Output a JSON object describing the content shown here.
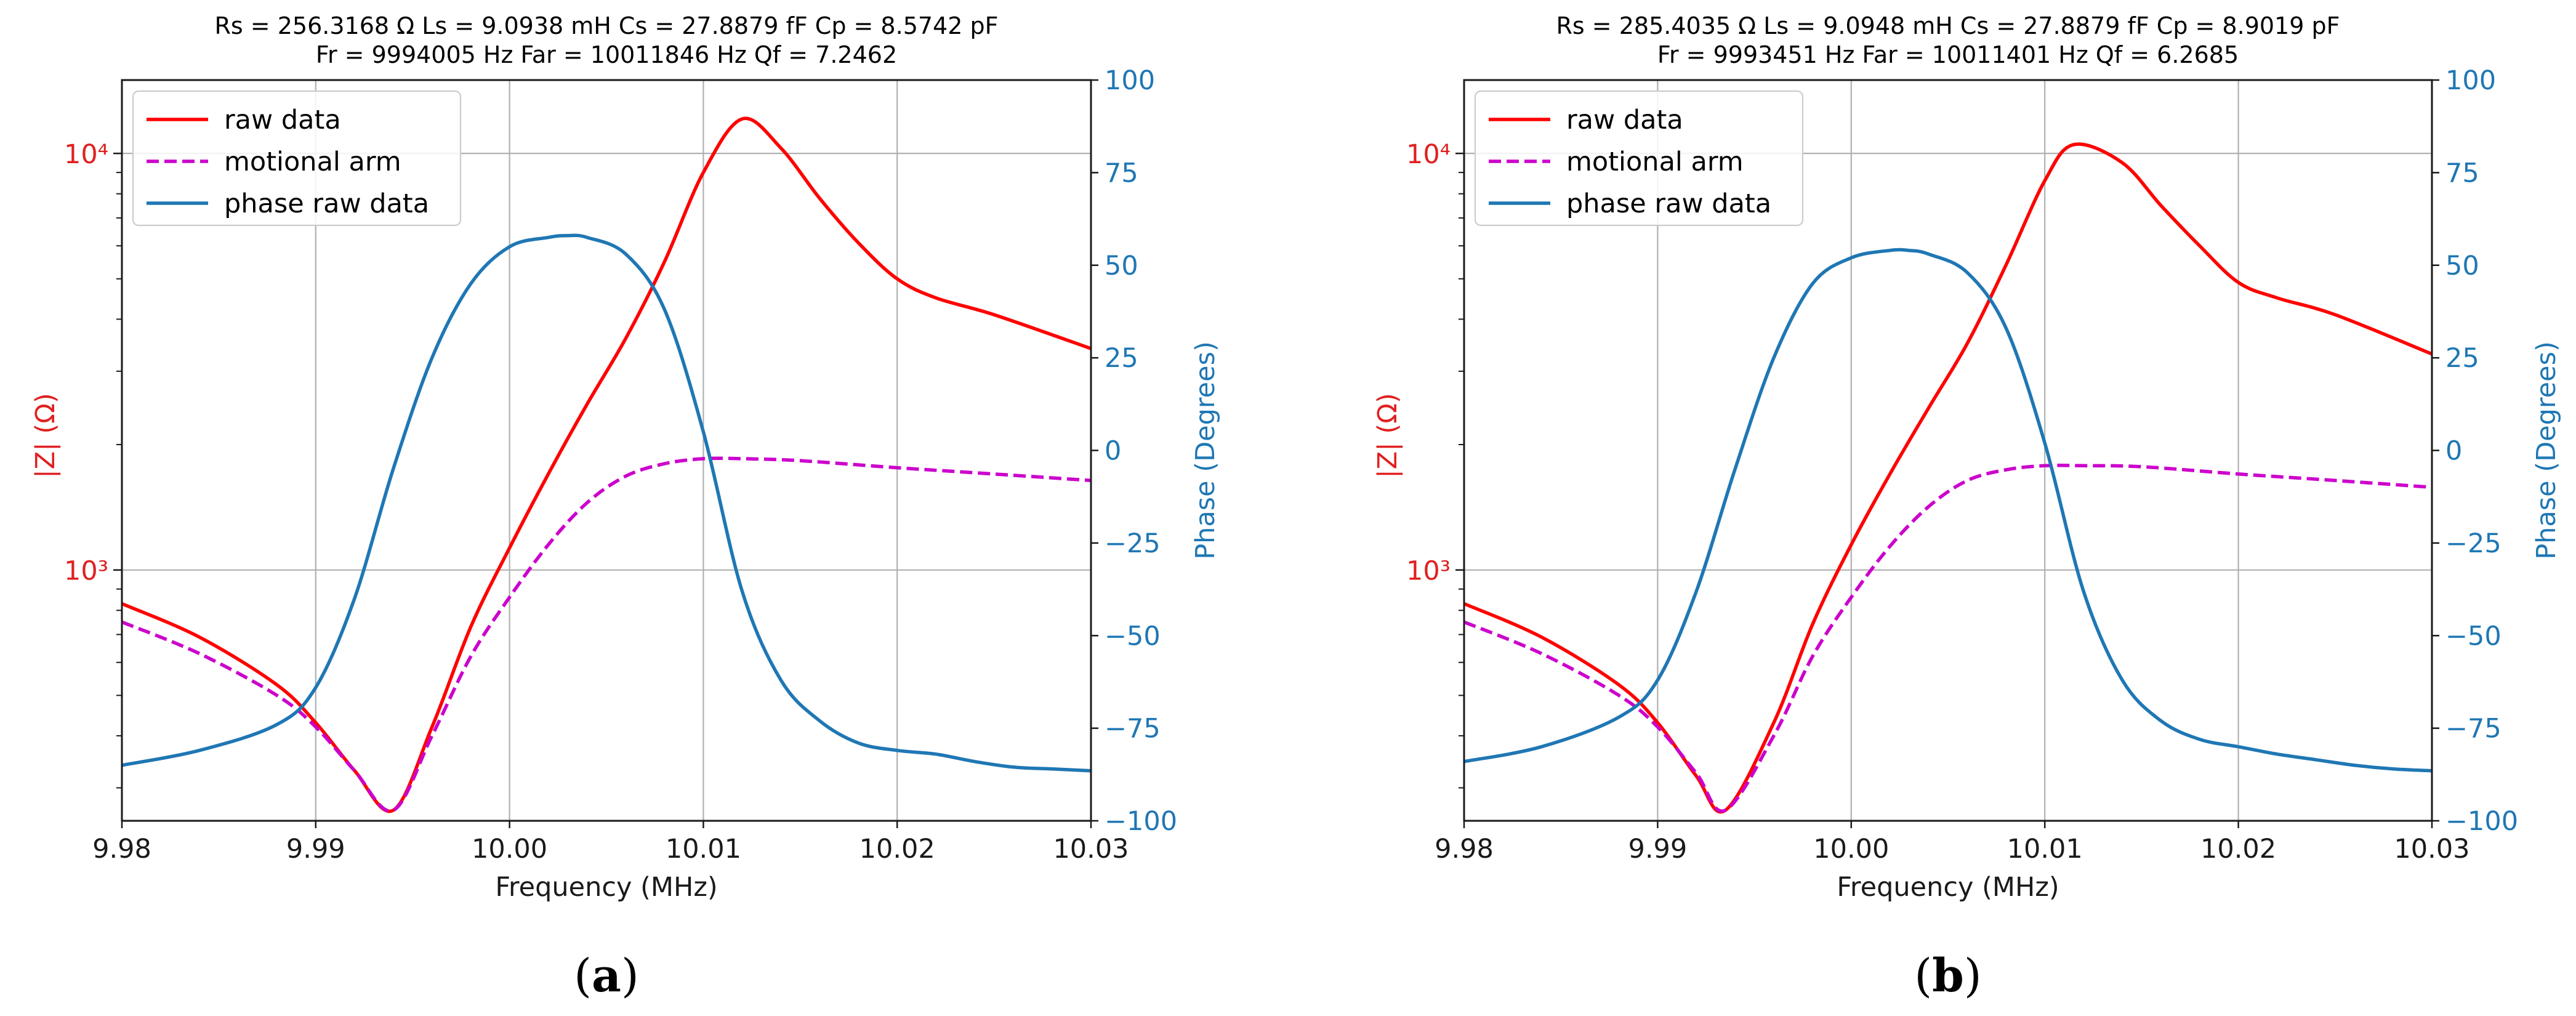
{
  "chart_data": [
    {
      "type": "line",
      "panel_label": "a",
      "title_lines": [
        "Rs = 256.3168 Ω    Ls = 9.0938 mH    Cs = 27.8879 fF    Cp = 8.5742 pF",
        "Fr = 9994005 Hz   Far = 10011846 Hz   Qf =    7.2462"
      ],
      "xlabel": "Frequency (MHz)",
      "ylabel_left": "|Z| (Ω)",
      "ylabel_right": "Phase (Degrees)",
      "xlim": [
        9.98,
        10.03
      ],
      "ylim_left_log": [
        250,
        15000
      ],
      "ylim_right": [
        -100,
        100
      ],
      "x_ticks": [
        9.98,
        9.99,
        10.0,
        10.01,
        10.02,
        10.03
      ],
      "x_tick_labels": [
        "9.98",
        "9.99",
        "10.00",
        "10.01",
        "10.02",
        "10.03"
      ],
      "y_left_ticks": [
        1000,
        10000
      ],
      "y_left_tick_labels": [
        "10³",
        "10⁴"
      ],
      "y_right_ticks": [
        -100,
        -75,
        -50,
        -25,
        0,
        25,
        50,
        75,
        100
      ],
      "y_right_tick_labels": [
        "−100",
        "−75",
        "−50",
        "−25",
        "0",
        "25",
        "50",
        "75",
        "100"
      ],
      "legend": [
        "raw data",
        "motional arm",
        "phase raw data"
      ],
      "series": [
        {
          "name": "raw data",
          "axis": "left",
          "color": "#ff0000",
          "dash": "solid",
          "x": [
            9.98,
            9.984,
            9.988,
            9.99,
            9.992,
            9.994,
            9.996,
            9.998,
            10.0,
            10.002,
            10.004,
            10.006,
            10.008,
            10.01,
            10.012,
            10.014,
            10.016,
            10.018,
            10.02,
            10.022,
            10.025,
            10.03
          ],
          "y": [
            830,
            690,
            530,
            430,
            330,
            265,
            420,
            730,
            1130,
            1700,
            2500,
            3600,
            5500,
            9000,
            12100,
            10300,
            7800,
            6100,
            5000,
            4500,
            4100,
            3400
          ]
        },
        {
          "name": "motional arm",
          "axis": "left",
          "color": "#cc00cc",
          "dash": "dashed",
          "x": [
            9.98,
            9.984,
            9.988,
            9.99,
            9.992,
            9.994,
            9.996,
            9.998,
            10.0,
            10.002,
            10.004,
            10.006,
            10.008,
            10.01,
            10.012,
            10.015,
            10.02,
            10.025,
            10.03
          ],
          "y": [
            750,
            630,
            500,
            420,
            330,
            265,
            400,
            620,
            860,
            1150,
            1450,
            1680,
            1800,
            1850,
            1850,
            1830,
            1760,
            1700,
            1640
          ]
        },
        {
          "name": "phase raw data",
          "axis": "right",
          "color": "#1f77b4",
          "dash": "solid",
          "x": [
            9.98,
            9.984,
            9.988,
            9.99,
            9.992,
            9.994,
            9.996,
            9.998,
            10.0,
            10.002,
            10.003,
            10.004,
            10.006,
            10.008,
            10.01,
            10.012,
            10.014,
            10.016,
            10.018,
            10.02,
            10.022,
            10.024,
            10.026,
            10.028,
            10.03
          ],
          "y": [
            -85,
            -81,
            -74,
            -64,
            -40,
            -5,
            25,
            45,
            55,
            57.5,
            58,
            57.5,
            53,
            38,
            5,
            -38,
            -62,
            -73,
            -79,
            -81,
            -82,
            -84,
            -85.5,
            -86,
            -86.5
          ]
        }
      ]
    },
    {
      "type": "line",
      "panel_label": "b",
      "title_lines": [
        "Rs = 285.4035 Ω    Ls = 9.0948 mH    Cs = 27.8879 fF    Cp = 8.9019 pF",
        "Fr = 9993451 Hz   Far = 10011401 Hz   Qf =    6.2685"
      ],
      "xlabel": "Frequency (MHz)",
      "ylabel_left": "|Z| (Ω)",
      "ylabel_right": "Phase (Degrees)",
      "xlim": [
        9.98,
        10.03
      ],
      "ylim_left_log": [
        250,
        15000
      ],
      "ylim_right": [
        -100,
        100
      ],
      "x_ticks": [
        9.98,
        9.99,
        10.0,
        10.01,
        10.02,
        10.03
      ],
      "x_tick_labels": [
        "9.98",
        "9.99",
        "10.00",
        "10.01",
        "10.02",
        "10.03"
      ],
      "y_left_ticks": [
        1000,
        10000
      ],
      "y_left_tick_labels": [
        "10³",
        "10⁴"
      ],
      "y_right_ticks": [
        -100,
        -75,
        -50,
        -25,
        0,
        25,
        50,
        75,
        100
      ],
      "y_right_tick_labels": [
        "−100",
        "−75",
        "−50",
        "−25",
        "0",
        "25",
        "50",
        "75",
        "100"
      ],
      "legend": [
        "raw data",
        "motional arm",
        "phase raw data"
      ],
      "series": [
        {
          "name": "raw data",
          "axis": "left",
          "color": "#ff0000",
          "dash": "solid",
          "x": [
            9.98,
            9.984,
            9.988,
            9.99,
            9.992,
            9.9935,
            9.996,
            9.998,
            10.0,
            10.002,
            10.004,
            10.006,
            10.008,
            10.01,
            10.0115,
            10.014,
            10.016,
            10.018,
            10.02,
            10.022,
            10.025,
            10.03
          ],
          "y": [
            830,
            690,
            530,
            430,
            320,
            265,
            430,
            740,
            1150,
            1700,
            2450,
            3500,
            5400,
            8600,
            10500,
            9500,
            7500,
            6000,
            4900,
            4500,
            4100,
            3300
          ]
        },
        {
          "name": "motional arm",
          "axis": "left",
          "color": "#cc00cc",
          "dash": "dashed",
          "x": [
            9.98,
            9.984,
            9.988,
            9.99,
            9.992,
            9.9935,
            9.996,
            9.998,
            10.0,
            10.002,
            10.004,
            10.006,
            10.008,
            10.01,
            10.012,
            10.015,
            10.02,
            10.025,
            10.03
          ],
          "y": [
            750,
            630,
            500,
            420,
            325,
            265,
            400,
            620,
            860,
            1140,
            1420,
            1640,
            1740,
            1780,
            1780,
            1770,
            1700,
            1640,
            1580
          ]
        },
        {
          "name": "phase raw data",
          "axis": "right",
          "color": "#1f77b4",
          "dash": "solid",
          "x": [
            9.98,
            9.984,
            9.988,
            9.99,
            9.992,
            9.994,
            9.996,
            9.998,
            10.0,
            10.002,
            10.003,
            10.004,
            10.006,
            10.008,
            10.01,
            10.012,
            10.014,
            10.016,
            10.018,
            10.02,
            10.022,
            10.024,
            10.026,
            10.028,
            10.03
          ],
          "y": [
            -84,
            -80,
            -72,
            -62,
            -38,
            -5,
            25,
            45,
            52,
            54,
            54,
            53,
            48,
            33,
            2,
            -38,
            -62,
            -73,
            -78,
            -80,
            -82,
            -83.5,
            -85,
            -86,
            -86.5
          ]
        }
      ]
    }
  ]
}
